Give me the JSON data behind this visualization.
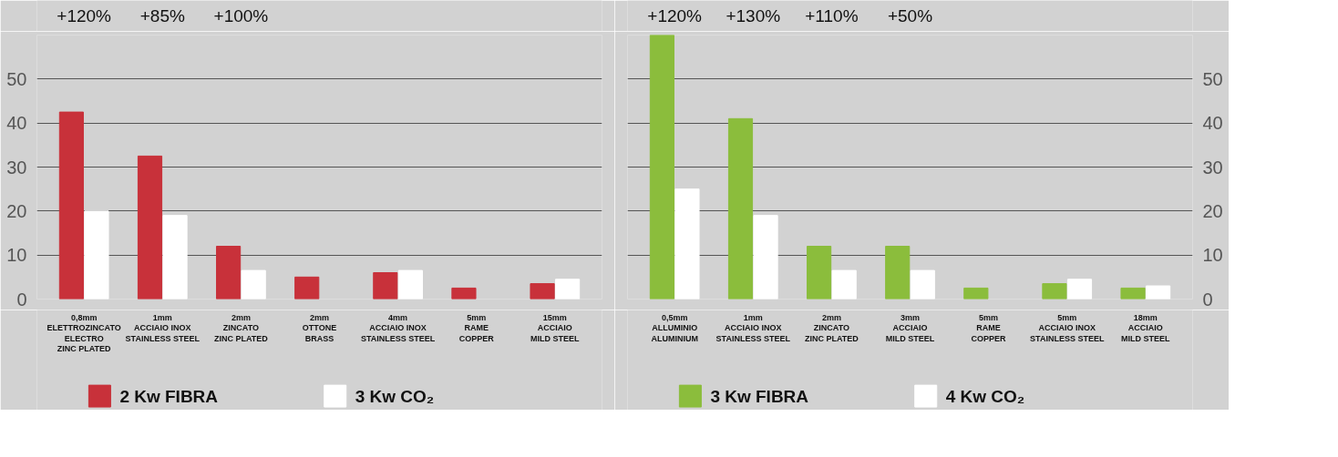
{
  "chart_data": [
    {
      "type": "bar",
      "categories": [
        "0,8mm\nELETTROZINCATO\nELECTRO\nZINC PLATED",
        "1mm\nACCIAIO INOX\nSTAINLESS STEEL",
        "2mm\nZINCATO\nZINC PLATED",
        "2mm\nOTTONE\nBRASS",
        "4mm\nACCIAIO INOX\nSTAINLESS STEEL",
        "5mm\nRAME\nCOPPER",
        "15mm\nACCIAIO\nMILD STEEL"
      ],
      "series": [
        {
          "name": "2 Kw FIBRA",
          "color": "#c8313a",
          "values": [
            42.5,
            32.5,
            12,
            5,
            6,
            2.5,
            3.5
          ]
        },
        {
          "name": "3 Kw CO₂",
          "color": "#ffffff",
          "values": [
            20,
            19,
            6.5,
            null,
            6.5,
            null,
            4.5
          ]
        }
      ],
      "ylim": [
        0,
        60
      ],
      "yticks": [
        0,
        10,
        20,
        30,
        40,
        50,
        {
          "value": 60,
          "label": null
        }
      ],
      "annotations": [
        "+120%",
        "+85%",
        "+100%"
      ],
      "grid": "y",
      "legend": "bottom"
    },
    {
      "type": "bar",
      "categories": [
        "0,5mm\nALLUMINIO\nALUMINIUM",
        "1mm\nACCIAIO INOX\nSTAINLESS STEEL",
        "2mm\nZINCATO\nZINC PLATED",
        "3mm\nACCIAIO\nMILD STEEL",
        "5mm\nRAME\nCOPPER",
        "5mm\nACCIAIO INOX\nSTAINLESS STEEL",
        "18mm\nACCIAIO\nMILD STEEL"
      ],
      "series": [
        {
          "name": "3 Kw FIBRA",
          "color": "#8bbd3c",
          "values": [
            60,
            41,
            12,
            12,
            2.5,
            3.5,
            2.5
          ],
          "axis": "y2"
        },
        {
          "name": "4 Kw CO₂",
          "color": "#ffffff",
          "values": [
            25,
            19,
            6.5,
            6.5,
            null,
            4.5,
            3
          ],
          "axis": "y2"
        }
      ],
      "y2lim": [
        0,
        60
      ],
      "y2ticks": [
        0,
        10,
        20,
        30,
        40,
        50,
        {
          "value": 60,
          "label": null
        }
      ],
      "annotations": [
        "+120%",
        "+130%",
        "+110%",
        "+50%"
      ],
      "grid": "y",
      "legend": "bottom"
    }
  ]
}
